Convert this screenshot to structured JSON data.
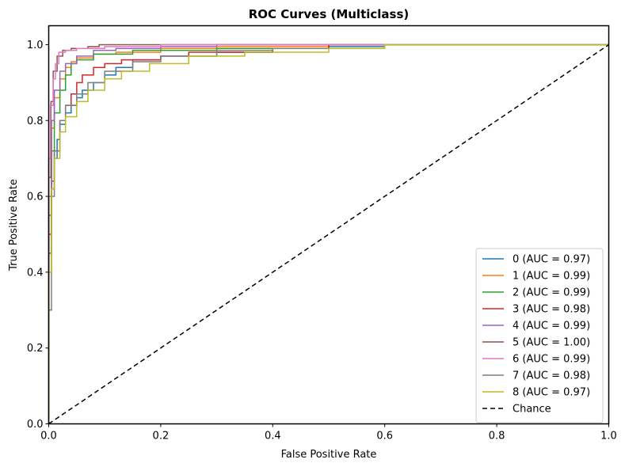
{
  "chart_data": {
    "type": "line",
    "title": "ROC Curves (Multiclass)",
    "xlabel": "False Positive Rate",
    "ylabel": "True Positive Rate",
    "xlim": [
      0,
      1
    ],
    "ylim": [
      0,
      1.05
    ],
    "xticks": [
      "0.0",
      "0.2",
      "0.4",
      "0.6",
      "0.8",
      "1.0"
    ],
    "yticks": [
      "0.0",
      "0.2",
      "0.4",
      "0.6",
      "0.8",
      "1.0"
    ],
    "grid": false,
    "legend_position": "lower-right",
    "series": [
      {
        "name": "0 (AUC = 0.97)",
        "color": "#1f77b4",
        "style": "solid",
        "points": [
          [
            0,
            0
          ],
          [
            0,
            0.45
          ],
          [
            0.005,
            0.62
          ],
          [
            0.01,
            0.7
          ],
          [
            0.015,
            0.75
          ],
          [
            0.02,
            0.79
          ],
          [
            0.03,
            0.82
          ],
          [
            0.04,
            0.84
          ],
          [
            0.05,
            0.86
          ],
          [
            0.06,
            0.88
          ],
          [
            0.08,
            0.9
          ],
          [
            0.1,
            0.92
          ],
          [
            0.12,
            0.94
          ],
          [
            0.15,
            0.96
          ],
          [
            0.2,
            0.97
          ],
          [
            0.3,
            0.98
          ],
          [
            0.4,
            0.99
          ],
          [
            0.5,
            0.995
          ],
          [
            0.6,
            1.0
          ],
          [
            1,
            1
          ]
        ]
      },
      {
        "name": "1 (AUC = 0.99)",
        "color": "#ff7f0e",
        "style": "solid",
        "points": [
          [
            0,
            0
          ],
          [
            0,
            0.6
          ],
          [
            0.005,
            0.78
          ],
          [
            0.01,
            0.86
          ],
          [
            0.02,
            0.91
          ],
          [
            0.03,
            0.94
          ],
          [
            0.04,
            0.955
          ],
          [
            0.05,
            0.965
          ],
          [
            0.08,
            0.975
          ],
          [
            0.12,
            0.98
          ],
          [
            0.2,
            0.99
          ],
          [
            0.3,
            0.995
          ],
          [
            0.5,
            1.0
          ],
          [
            1,
            1
          ]
        ]
      },
      {
        "name": "2 (AUC = 0.99)",
        "color": "#2ca02c",
        "style": "solid",
        "points": [
          [
            0,
            0
          ],
          [
            0,
            0.55
          ],
          [
            0.005,
            0.72
          ],
          [
            0.01,
            0.82
          ],
          [
            0.02,
            0.88
          ],
          [
            0.03,
            0.92
          ],
          [
            0.04,
            0.95
          ],
          [
            0.05,
            0.96
          ],
          [
            0.08,
            0.975
          ],
          [
            0.15,
            0.985
          ],
          [
            0.3,
            0.99
          ],
          [
            0.4,
            0.99
          ],
          [
            0.5,
            1.0
          ],
          [
            1,
            1
          ]
        ]
      },
      {
        "name": "3 (AUC = 0.98)",
        "color": "#d62728",
        "style": "solid",
        "points": [
          [
            0,
            0
          ],
          [
            0,
            0.5
          ],
          [
            0.005,
            0.64
          ],
          [
            0.01,
            0.72
          ],
          [
            0.02,
            0.8
          ],
          [
            0.03,
            0.84
          ],
          [
            0.04,
            0.87
          ],
          [
            0.05,
            0.9
          ],
          [
            0.06,
            0.92
          ],
          [
            0.08,
            0.94
          ],
          [
            0.1,
            0.95
          ],
          [
            0.13,
            0.96
          ],
          [
            0.2,
            0.97
          ],
          [
            0.25,
            0.98
          ],
          [
            0.4,
            0.99
          ],
          [
            0.5,
            1.0
          ],
          [
            1,
            1
          ]
        ]
      },
      {
        "name": "4 (AUC = 0.99)",
        "color": "#9467bd",
        "style": "solid",
        "points": [
          [
            0,
            0
          ],
          [
            0,
            0.6
          ],
          [
            0.005,
            0.8
          ],
          [
            0.01,
            0.88
          ],
          [
            0.02,
            0.93
          ],
          [
            0.03,
            0.95
          ],
          [
            0.05,
            0.97
          ],
          [
            0.08,
            0.985
          ],
          [
            0.12,
            0.99
          ],
          [
            0.2,
            0.995
          ],
          [
            0.3,
            1.0
          ],
          [
            1,
            1
          ]
        ]
      },
      {
        "name": "5 (AUC = 1.00)",
        "color": "#8c564b",
        "style": "solid",
        "points": [
          [
            0,
            0
          ],
          [
            0,
            0.65
          ],
          [
            0.004,
            0.85
          ],
          [
            0.008,
            0.93
          ],
          [
            0.015,
            0.97
          ],
          [
            0.025,
            0.985
          ],
          [
            0.04,
            0.99
          ],
          [
            0.07,
            0.995
          ],
          [
            0.09,
            1.0
          ],
          [
            1,
            1
          ]
        ]
      },
      {
        "name": "6 (AUC = 0.99)",
        "color": "#e377c2",
        "style": "solid",
        "points": [
          [
            0,
            0
          ],
          [
            0,
            0.7
          ],
          [
            0.003,
            0.84
          ],
          [
            0.008,
            0.91
          ],
          [
            0.012,
            0.95
          ],
          [
            0.018,
            0.98
          ],
          [
            0.03,
            0.985
          ],
          [
            0.05,
            0.99
          ],
          [
            0.1,
            0.995
          ],
          [
            0.2,
            1.0
          ],
          [
            1,
            1
          ]
        ]
      },
      {
        "name": "7 (AUC = 0.98)",
        "color": "#7f7f7f",
        "style": "solid",
        "points": [
          [
            0,
            0
          ],
          [
            0,
            0.3
          ],
          [
            0.005,
            0.6
          ],
          [
            0.01,
            0.72
          ],
          [
            0.02,
            0.8
          ],
          [
            0.03,
            0.84
          ],
          [
            0.05,
            0.87
          ],
          [
            0.07,
            0.9
          ],
          [
            0.1,
            0.93
          ],
          [
            0.15,
            0.955
          ],
          [
            0.2,
            0.97
          ],
          [
            0.3,
            0.985
          ],
          [
            0.4,
            0.99
          ],
          [
            0.6,
            1.0
          ],
          [
            1,
            1
          ]
        ]
      },
      {
        "name": "8 (AUC = 0.97)",
        "color": "#bcbd22",
        "style": "solid",
        "points": [
          [
            0,
            0
          ],
          [
            0,
            0.4
          ],
          [
            0.005,
            0.62
          ],
          [
            0.01,
            0.7
          ],
          [
            0.02,
            0.77
          ],
          [
            0.03,
            0.81
          ],
          [
            0.05,
            0.85
          ],
          [
            0.07,
            0.88
          ],
          [
            0.1,
            0.91
          ],
          [
            0.13,
            0.93
          ],
          [
            0.18,
            0.95
          ],
          [
            0.25,
            0.97
          ],
          [
            0.35,
            0.98
          ],
          [
            0.5,
            0.99
          ],
          [
            0.6,
            1.0
          ],
          [
            1,
            1
          ]
        ]
      },
      {
        "name": "Chance",
        "color": "#000000",
        "style": "dashed",
        "points": [
          [
            0,
            0
          ],
          [
            1,
            1
          ]
        ]
      }
    ]
  }
}
